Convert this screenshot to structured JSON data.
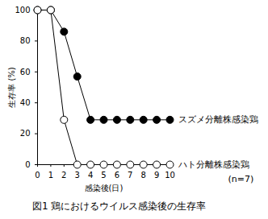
{
  "chart_data": {
    "type": "line",
    "title": "図1 鶏におけるウイルス感染後の生存率",
    "x_label": "感染後(日)",
    "y_label": "生存率 (%)",
    "x": [
      0,
      1,
      2,
      3,
      4,
      5,
      6,
      7,
      8,
      9,
      10
    ],
    "series": [
      {
        "name": "スズメ分離株感染鶏",
        "color": "#000000",
        "marker": "circle",
        "values": [
          100,
          100,
          86,
          57,
          29,
          29,
          29,
          29,
          29,
          29,
          29
        ]
      },
      {
        "name": "ハト分離株感染鶏",
        "color": "#000000",
        "marker": "circle-open",
        "values": [
          100,
          100,
          29,
          0,
          0,
          0,
          0,
          0,
          0,
          0,
          0
        ]
      }
    ],
    "annotations": [
      "(n=7)"
    ],
    "xlim": [
      0,
      10
    ],
    "xticks": [
      0,
      1,
      2,
      3,
      4,
      5,
      6,
      7,
      8,
      9,
      10
    ],
    "ylim": [
      0,
      100
    ],
    "yticks": [
      0,
      20,
      40,
      60,
      80,
      100
    ],
    "grid": false
  }
}
